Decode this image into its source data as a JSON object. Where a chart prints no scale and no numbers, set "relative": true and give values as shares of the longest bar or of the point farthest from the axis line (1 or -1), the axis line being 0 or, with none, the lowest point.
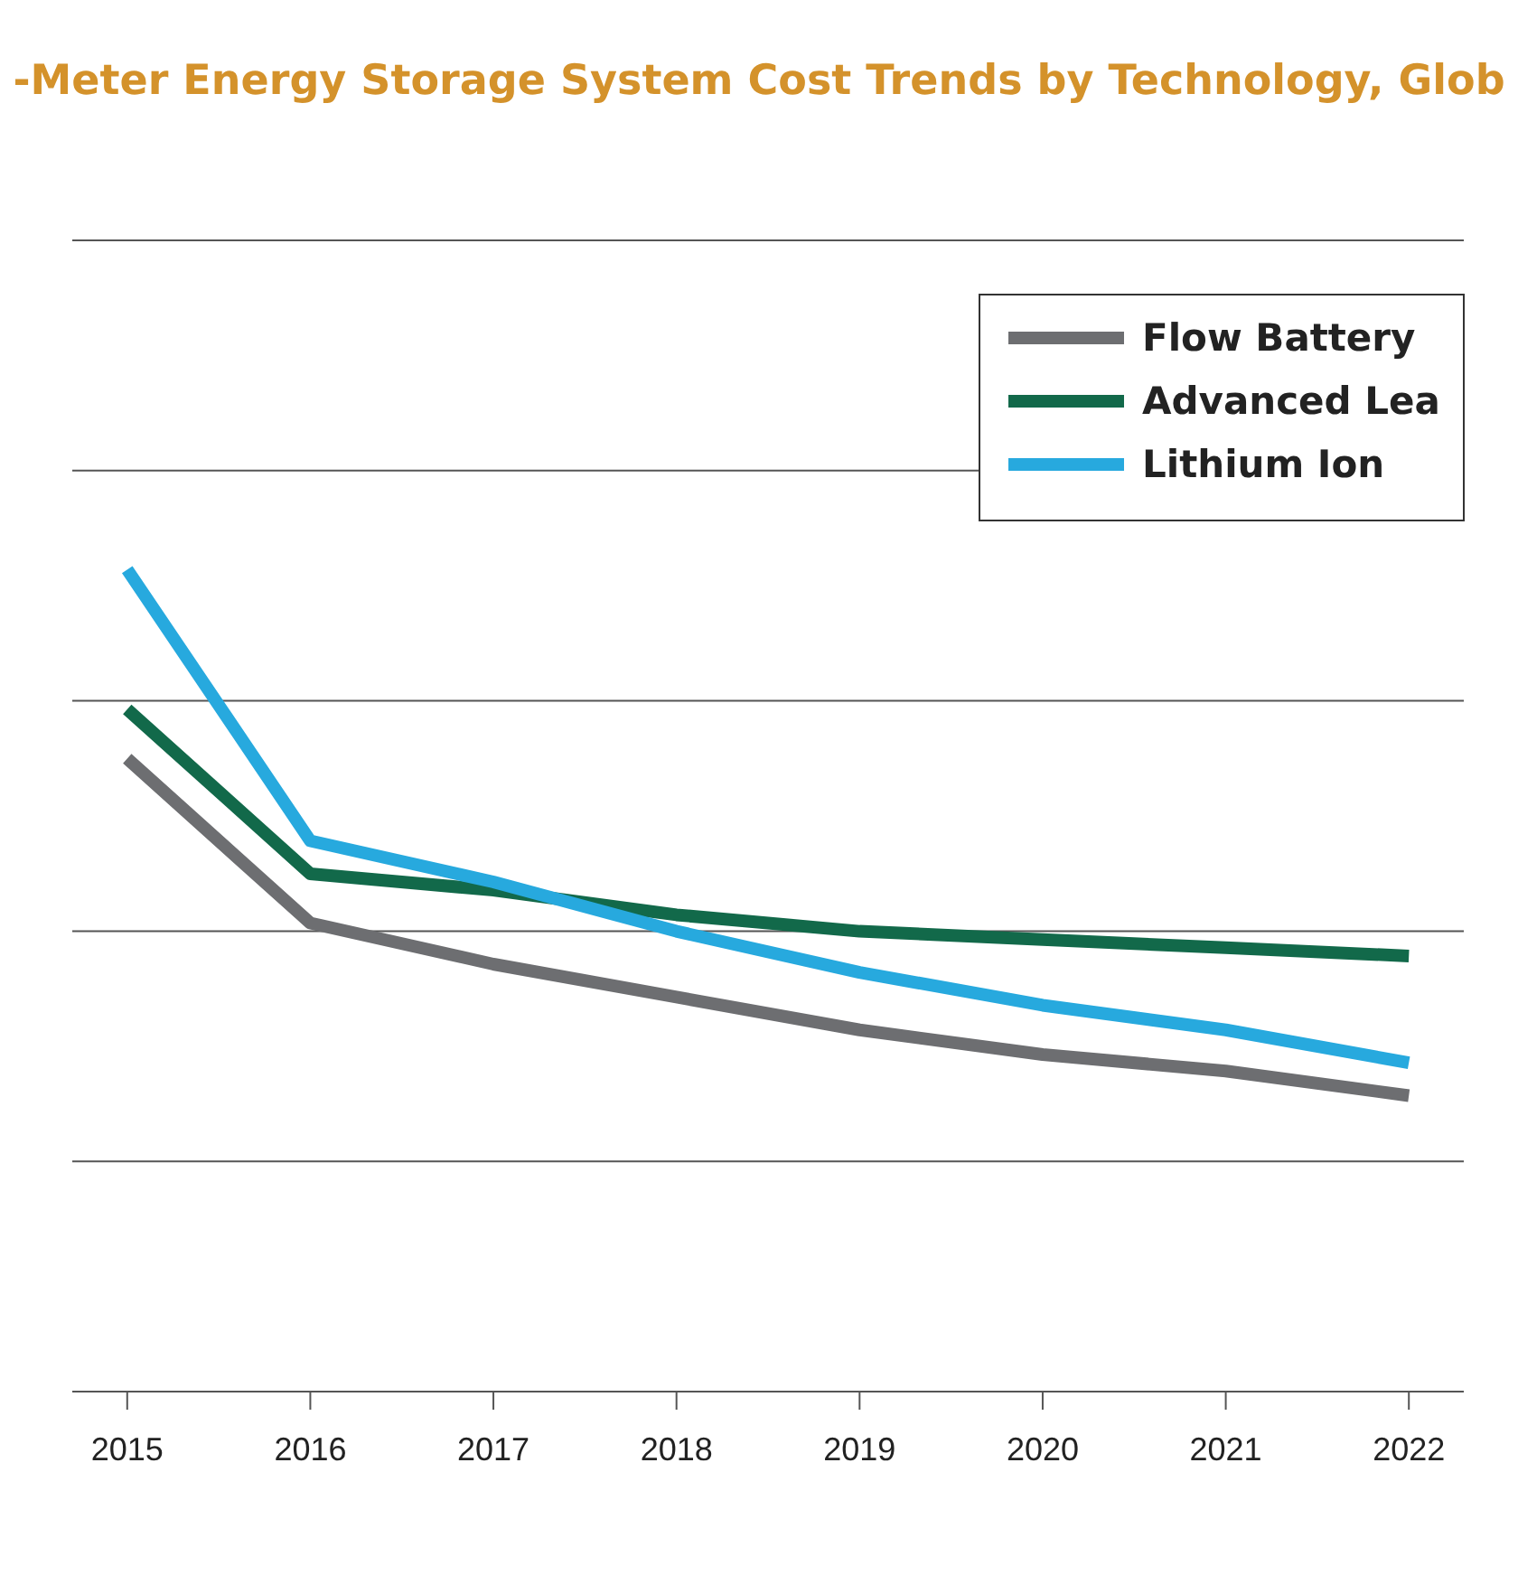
{
  "chart_data": {
    "type": "line",
    "title": "-Meter Energy Storage System Cost Trends by Technology, Glob",
    "relative": true,
    "grid": "y",
    "legend": "top right",
    "line_style": "solid",
    "marker": "none",
    "categories": [
      "2015",
      "2016",
      "2017",
      "2018",
      "2019",
      "2020",
      "2021",
      "2022"
    ],
    "series": [
      {
        "name": "Flow Battery",
        "color": "#6d6e71",
        "values": [
          0.77,
          0.57,
          0.52,
          0.48,
          0.44,
          0.41,
          0.39,
          0.36
        ]
      },
      {
        "name": "Advanced Lea",
        "color": "#12694a",
        "values": [
          0.83,
          0.63,
          0.61,
          0.58,
          0.56,
          0.55,
          0.54,
          0.53
        ]
      },
      {
        "name": "Lithium Ion",
        "color": "#27a9de",
        "values": [
          1,
          0.67,
          0.62,
          0.56,
          0.51,
          0.47,
          0.44,
          0.4
        ]
      }
    ]
  }
}
